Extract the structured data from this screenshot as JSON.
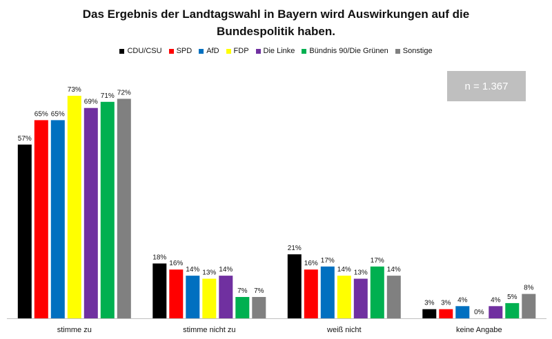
{
  "chart_data": {
    "type": "bar",
    "title_lines": [
      "Das Ergebnis der Landtagswahl in Bayern wird Auswirkungen auf die",
      "Bundespolitik haben."
    ],
    "note": "n = 1.367",
    "categories": [
      "stimme zu",
      "stimme nicht zu",
      "weiß nicht",
      "keine Angabe"
    ],
    "series": [
      {
        "name": "CDU/CSU",
        "color": "#000000",
        "values": [
          57,
          18,
          21,
          3
        ]
      },
      {
        "name": "SPD",
        "color": "#ff0000",
        "values": [
          65,
          16,
          16,
          3
        ]
      },
      {
        "name": "AfD",
        "color": "#0070c0",
        "values": [
          65,
          14,
          17,
          4
        ]
      },
      {
        "name": "FDP",
        "color": "#ffff00",
        "values": [
          73,
          13,
          14,
          0
        ]
      },
      {
        "name": "Die Linke",
        "color": "#7030a0",
        "values": [
          69,
          14,
          13,
          4
        ]
      },
      {
        "name": "Bündnis 90/Die Grünen",
        "color": "#00b050",
        "values": [
          71,
          7,
          17,
          5
        ]
      },
      {
        "name": "Sonstige",
        "color": "#808080",
        "values": [
          72,
          7,
          14,
          8
        ]
      }
    ],
    "value_suffix": "%",
    "ylim": [
      0,
      80
    ],
    "grid": false,
    "legend_position": "top"
  }
}
